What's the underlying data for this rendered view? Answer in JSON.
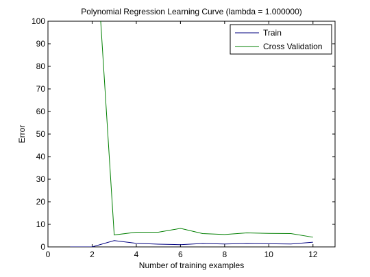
{
  "chart_data": {
    "type": "line",
    "title": "Polynomial Regression Learning Curve (lambda = 1.000000)",
    "xlabel": "Number of training examples",
    "ylabel": "Error",
    "xlim": [
      0,
      13
    ],
    "ylim": [
      0,
      100
    ],
    "xticks": [
      0,
      2,
      4,
      6,
      8,
      10,
      12
    ],
    "yticks": [
      0,
      10,
      20,
      30,
      40,
      50,
      60,
      70,
      80,
      90,
      100
    ],
    "grid": false,
    "legend_position": "top-right",
    "x": [
      1,
      2,
      3,
      4,
      5,
      6,
      7,
      8,
      9,
      10,
      11,
      12
    ],
    "series": [
      {
        "name": "Train",
        "color": "#00007f",
        "values": [
          0.0,
          0.0,
          2.8,
          1.6,
          1.2,
          1.0,
          1.5,
          1.3,
          1.5,
          1.4,
          1.3,
          2.1
        ]
      },
      {
        "name": "Cross Validation",
        "color": "#007f00",
        "values": [
          null,
          160.0,
          5.3,
          6.5,
          6.5,
          8.2,
          5.9,
          5.5,
          6.2,
          6.0,
          5.9,
          4.3
        ]
      }
    ]
  }
}
